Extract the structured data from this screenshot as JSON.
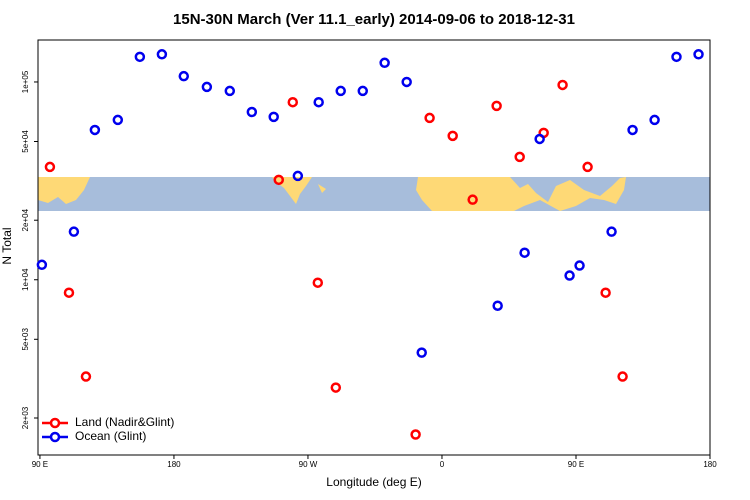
{
  "chart_data": {
    "type": "scatter",
    "title": "15N-30N March (Ver 11.1_early)   2014-09-06 to 2018-12-31",
    "x_label": "Longitude (deg E)",
    "y_label": "N Total",
    "xlim": [
      88.7,
      540
    ],
    "xticks": [
      {
        "value": 90,
        "label": "90 E"
      },
      180,
      {
        "value": 270,
        "label": "90 W"
      },
      {
        "value": 360,
        "label": "0"
      },
      {
        "value": 450,
        "label": "90 E"
      },
      {
        "value": 540,
        "label": "180"
      }
    ],
    "ylim": [
      1300,
      163000
    ],
    "yticks": [
      {
        "value": 2000,
        "label": "2e+03"
      },
      {
        "value": 5000,
        "label": "5e+03"
      },
      {
        "value": 10000,
        "label": "1e+04"
      },
      {
        "value": 20000,
        "label": "2e+04"
      },
      {
        "value": 50000,
        "label": "5e+04"
      },
      {
        "value": 100000,
        "label": "1e+05"
      }
    ],
    "ylog": true,
    "legend": "bottom-left",
    "series": [
      {
        "name": "Land (Nadir&Glint)",
        "color": "#ff0000",
        "x": [
          96.7,
          109.5,
          120.9,
          250.4,
          259.8,
          276.6,
          288.7,
          342.3,
          351.7,
          367.2,
          380.6,
          396.7,
          412.2,
          428.3,
          441,
          457.8,
          469.9,
          481.3
        ],
        "values": [
          37200,
          8600,
          3240,
          32000,
          79000,
          9660,
          2850,
          1650,
          65800,
          53400,
          25400,
          75700,
          41800,
          55300,
          96600,
          37200,
          8600,
          3240
        ]
      },
      {
        "name": "Ocean (Glint)",
        "color": "#0000ee",
        "x": [
          91.3,
          112.8,
          126.9,
          142.3,
          157.1,
          171.9,
          186.6,
          202.1,
          217.5,
          232.3,
          247,
          263.2,
          277.2,
          292,
          306.8,
          321.5,
          336.3,
          346.4,
          397.4,
          415.5,
          425.6,
          445.7,
          452.4,
          473.9,
          488,
          502.8,
          517.5,
          532.3
        ],
        "values": [
          11900,
          17500,
          57200,
          64300,
          134000,
          138000,
          107000,
          94400,
          90100,
          70500,
          66600,
          33500,
          79000,
          90100,
          90100,
          125000,
          100000,
          4280,
          7390,
          13700,
          51500,
          10500,
          11800,
          17500,
          57200,
          64300,
          134000,
          138000
        ]
      }
    ]
  }
}
